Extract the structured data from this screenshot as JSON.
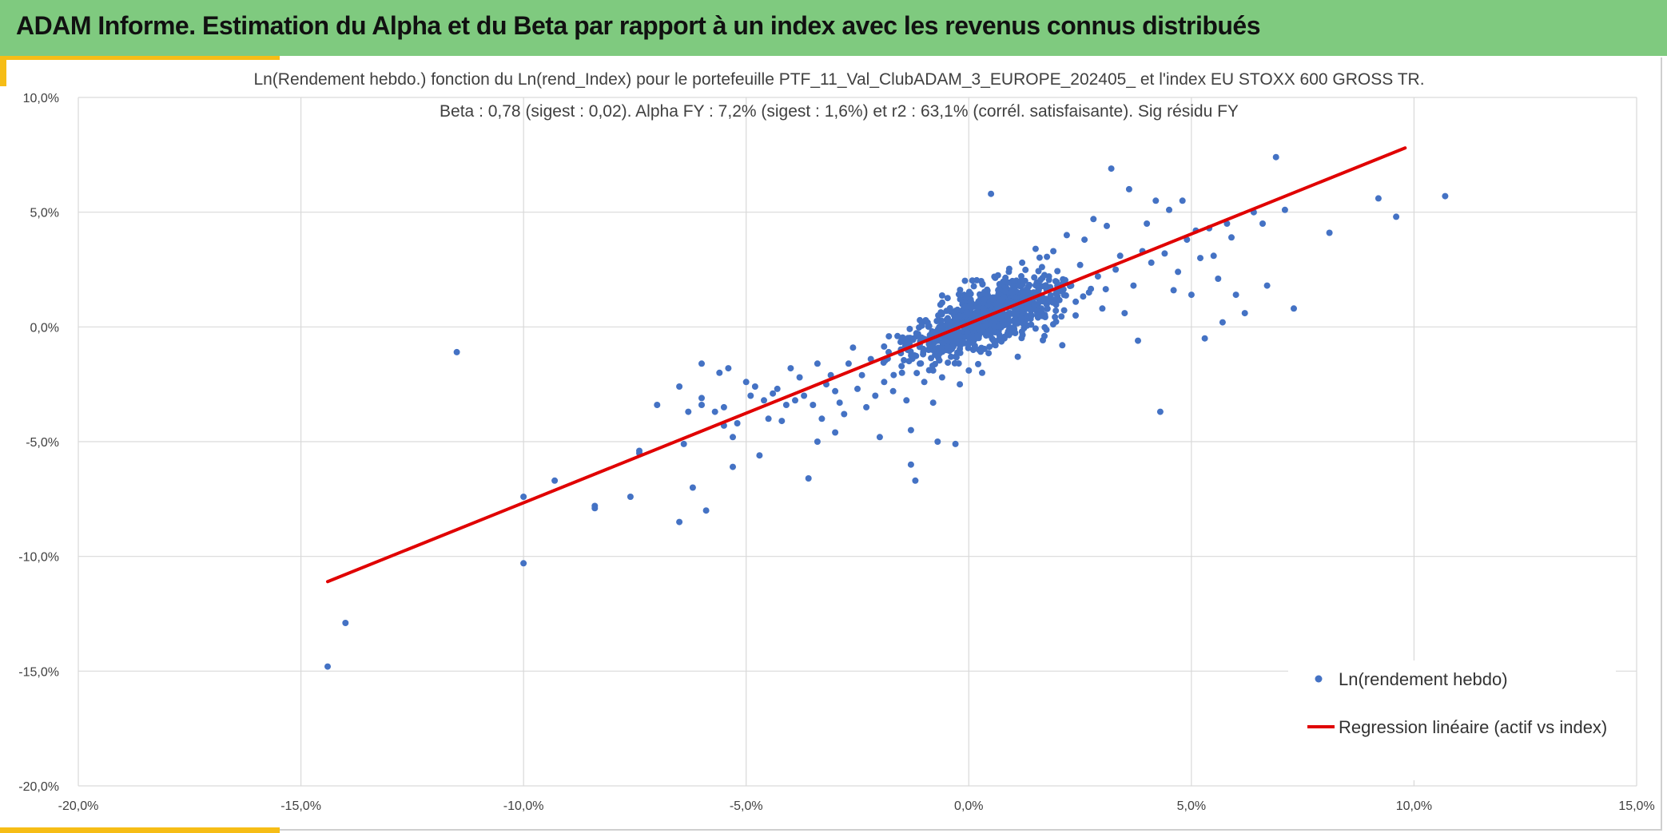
{
  "header": {
    "title": "ADAM Informe. Estimation du Alpha et du Beta par rapport à un index avec les revenus connus distribués"
  },
  "colors": {
    "header_bg": "#7fca7f",
    "accent": "#f6bd16",
    "point": "#4472c4",
    "regression": "#e00000",
    "grid": "#d9d9d9"
  },
  "chart_data": {
    "type": "scatter",
    "title": "Ln(Rendement hebdo.) fonction du Ln(rend_Index) pour le portefeuille PTF_11_Val_ClubADAM_3_EUROPE_202405_ et l'index EU STOXX 600 GROSS TR.",
    "subtitle": "Beta : 0,78 (sigest : 0,02).  Alpha FY : 7,2% (sigest : 1,6%) et r2 : 63,1% (corrél. satisfaisante). Sig résidu FY",
    "xlabel": "",
    "ylabel": "",
    "xlim": [
      -0.2,
      0.15
    ],
    "ylim": [
      -0.2,
      0.1
    ],
    "x_ticks": [
      -0.2,
      -0.15,
      -0.1,
      -0.05,
      0.0,
      0.05,
      0.1,
      0.15
    ],
    "x_tick_labels": [
      "-20,0%",
      "-15,0%",
      "-10,0%",
      "-5,0%",
      "0,0%",
      "5,0%",
      "10,0%",
      "15,0%"
    ],
    "y_ticks": [
      0.1,
      0.05,
      0.0,
      -0.05,
      -0.1,
      -0.15,
      -0.2
    ],
    "y_tick_labels": [
      "10,0%",
      "5,0%",
      "0,0%",
      "-5,0%",
      "-10,0%",
      "-15,0%",
      "-20,0%"
    ],
    "grid": true,
    "legend_position": "bottom-right",
    "series": [
      {
        "name": "Ln(rendement hebdo)",
        "kind": "scatter",
        "points": [
          [
            -0.144,
            -0.148
          ],
          [
            -0.14,
            -0.129
          ],
          [
            -0.115,
            -0.011
          ],
          [
            -0.1,
            -0.103
          ],
          [
            -0.1,
            -0.074
          ],
          [
            -0.093,
            -0.067
          ],
          [
            -0.084,
            -0.078
          ],
          [
            -0.084,
            -0.079
          ],
          [
            -0.076,
            -0.074
          ],
          [
            -0.074,
            -0.055
          ],
          [
            -0.074,
            -0.054
          ],
          [
            -0.07,
            -0.034
          ],
          [
            -0.065,
            -0.085
          ],
          [
            -0.065,
            -0.026
          ],
          [
            -0.064,
            -0.051
          ],
          [
            -0.063,
            -0.037
          ],
          [
            -0.062,
            -0.07
          ],
          [
            -0.06,
            -0.016
          ],
          [
            -0.06,
            -0.034
          ],
          [
            -0.06,
            -0.031
          ],
          [
            -0.059,
            -0.08
          ],
          [
            -0.057,
            -0.037
          ],
          [
            -0.056,
            -0.02
          ],
          [
            -0.055,
            -0.043
          ],
          [
            -0.055,
            -0.035
          ],
          [
            -0.054,
            -0.018
          ],
          [
            -0.053,
            -0.061
          ],
          [
            -0.053,
            -0.048
          ],
          [
            -0.052,
            -0.042
          ],
          [
            -0.05,
            -0.024
          ],
          [
            -0.049,
            -0.03
          ],
          [
            -0.048,
            -0.026
          ],
          [
            -0.047,
            -0.056
          ],
          [
            -0.046,
            -0.032
          ],
          [
            -0.045,
            -0.04
          ],
          [
            -0.044,
            -0.029
          ],
          [
            -0.043,
            -0.027
          ],
          [
            -0.042,
            -0.041
          ],
          [
            -0.041,
            -0.034
          ],
          [
            -0.04,
            -0.018
          ],
          [
            -0.039,
            -0.032
          ],
          [
            -0.038,
            -0.022
          ],
          [
            -0.037,
            -0.03
          ],
          [
            -0.036,
            -0.066
          ],
          [
            -0.035,
            -0.034
          ],
          [
            -0.034,
            -0.05
          ],
          [
            -0.034,
            -0.016
          ],
          [
            -0.033,
            -0.04
          ],
          [
            -0.032,
            -0.025
          ],
          [
            -0.031,
            -0.021
          ],
          [
            -0.03,
            -0.046
          ],
          [
            -0.03,
            -0.028
          ],
          [
            -0.029,
            -0.033
          ],
          [
            -0.028,
            -0.038
          ],
          [
            -0.027,
            -0.016
          ],
          [
            -0.026,
            -0.009
          ],
          [
            -0.025,
            -0.027
          ],
          [
            -0.024,
            -0.021
          ],
          [
            -0.023,
            -0.035
          ],
          [
            -0.022,
            -0.014
          ],
          [
            -0.021,
            -0.03
          ],
          [
            -0.02,
            -0.048
          ],
          [
            -0.019,
            -0.024
          ],
          [
            -0.018,
            -0.011
          ],
          [
            -0.017,
            -0.028
          ],
          [
            -0.016,
            -0.004
          ],
          [
            -0.015,
            -0.02
          ],
          [
            -0.014,
            -0.032
          ],
          [
            -0.013,
            -0.045
          ],
          [
            -0.013,
            -0.06
          ],
          [
            -0.012,
            -0.067
          ],
          [
            -0.011,
            -0.016
          ],
          [
            -0.01,
            -0.024
          ],
          [
            -0.009,
            -0.01
          ],
          [
            -0.008,
            -0.019
          ],
          [
            -0.008,
            -0.033
          ],
          [
            -0.007,
            -0.05
          ],
          [
            -0.006,
            -0.022
          ],
          [
            -0.005,
            -0.007
          ],
          [
            -0.004,
            -0.013
          ],
          [
            -0.003,
            -0.051
          ],
          [
            -0.002,
            -0.004
          ],
          [
            -0.002,
            -0.025
          ],
          [
            -0.001,
            0.008
          ],
          [
            0.0,
            -0.019
          ],
          [
            0.001,
            -0.01
          ],
          [
            0.002,
            0.01
          ],
          [
            0.003,
            -0.02
          ],
          [
            0.004,
            0.003
          ],
          [
            0.005,
            0.058
          ],
          [
            0.006,
            -0.008
          ],
          [
            0.007,
            0.017
          ],
          [
            0.008,
            -0.005
          ],
          [
            0.009,
            0.024
          ],
          [
            0.01,
            0.006
          ],
          [
            0.011,
            -0.013
          ],
          [
            0.012,
            0.028
          ],
          [
            0.013,
            0.01
          ],
          [
            0.014,
            0.001
          ],
          [
            0.015,
            0.034
          ],
          [
            0.016,
            0.018
          ],
          [
            0.017,
            -0.004
          ],
          [
            0.018,
            0.022
          ],
          [
            0.019,
            0.033
          ],
          [
            0.02,
            0.012
          ],
          [
            0.021,
            -0.008
          ],
          [
            0.022,
            0.04
          ],
          [
            0.023,
            0.018
          ],
          [
            0.024,
            0.005
          ],
          [
            0.025,
            0.027
          ],
          [
            0.026,
            0.038
          ],
          [
            0.027,
            0.015
          ],
          [
            0.028,
            0.047
          ],
          [
            0.029,
            0.022
          ],
          [
            0.03,
            0.008
          ],
          [
            0.031,
            0.044
          ],
          [
            0.032,
            0.069
          ],
          [
            0.033,
            0.025
          ],
          [
            0.034,
            0.031
          ],
          [
            0.035,
            0.006
          ],
          [
            0.036,
            0.06
          ],
          [
            0.037,
            0.018
          ],
          [
            0.038,
            -0.006
          ],
          [
            0.039,
            0.033
          ],
          [
            0.04,
            0.045
          ],
          [
            0.041,
            0.028
          ],
          [
            0.042,
            0.055
          ],
          [
            0.043,
            -0.037
          ],
          [
            0.044,
            0.032
          ],
          [
            0.045,
            0.051
          ],
          [
            0.046,
            0.016
          ],
          [
            0.047,
            0.024
          ],
          [
            0.048,
            0.055
          ],
          [
            0.049,
            0.038
          ],
          [
            0.05,
            0.014
          ],
          [
            0.051,
            0.042
          ],
          [
            0.052,
            0.03
          ],
          [
            0.053,
            -0.005
          ],
          [
            0.054,
            0.043
          ],
          [
            0.055,
            0.031
          ],
          [
            0.056,
            0.021
          ],
          [
            0.057,
            0.002
          ],
          [
            0.058,
            0.045
          ],
          [
            0.059,
            0.039
          ],
          [
            0.06,
            0.014
          ],
          [
            0.062,
            0.006
          ],
          [
            0.064,
            0.05
          ],
          [
            0.066,
            0.045
          ],
          [
            0.067,
            0.018
          ],
          [
            0.069,
            0.074
          ],
          [
            0.071,
            0.051
          ],
          [
            0.073,
            0.008
          ],
          [
            0.081,
            0.041
          ],
          [
            0.092,
            0.056
          ],
          [
            0.096,
            0.048
          ],
          [
            0.107,
            0.057
          ]
        ]
      },
      {
        "name": "Regression linéaire (actif vs index)",
        "kind": "line",
        "points": [
          [
            -0.144,
            -0.111
          ],
          [
            0.098,
            0.078
          ]
        ]
      }
    ]
  }
}
